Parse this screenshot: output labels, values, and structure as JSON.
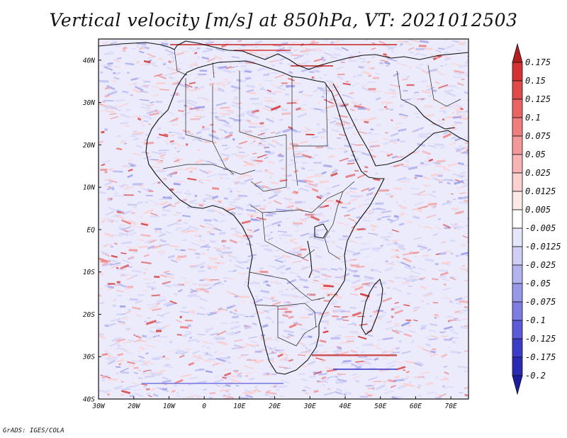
{
  "title": "Vertical velocity [m/s] at 850hPa, VT: 2021012503",
  "footer": "GrADS: IGES/COLA",
  "map": {
    "lon_range": [
      -30,
      75
    ],
    "lat_range": [
      -40,
      45
    ],
    "x_ticks": [
      {
        "lon": -30,
        "label": "30W"
      },
      {
        "lon": -20,
        "label": "20W"
      },
      {
        "lon": -10,
        "label": "10W"
      },
      {
        "lon": 0,
        "label": "0"
      },
      {
        "lon": 10,
        "label": "10E"
      },
      {
        "lon": 20,
        "label": "20E"
      },
      {
        "lon": 30,
        "label": "30E"
      },
      {
        "lon": 40,
        "label": "40E"
      },
      {
        "lon": 50,
        "label": "50E"
      },
      {
        "lon": 60,
        "label": "60E"
      },
      {
        "lon": 70,
        "label": "70E"
      }
    ],
    "y_ticks": [
      {
        "lat": 40,
        "label": "40N"
      },
      {
        "lat": 30,
        "label": "30N"
      },
      {
        "lat": 20,
        "label": "20N"
      },
      {
        "lat": 10,
        "label": "10N"
      },
      {
        "lat": 0,
        "label": "EQ"
      },
      {
        "lat": -10,
        "label": "10S"
      },
      {
        "lat": -20,
        "label": "20S"
      },
      {
        "lat": -30,
        "label": "30S"
      },
      {
        "lat": -40,
        "label": "40S"
      }
    ]
  },
  "colorbar": {
    "labels": [
      "0.175",
      "0.15",
      "0.125",
      "0.1",
      "0.075",
      "0.05",
      "0.025",
      "0.0125",
      "0.005",
      "-0.005",
      "-0.0125",
      "-0.025",
      "-0.05",
      "-0.075",
      "-0.1",
      "-0.125",
      "-0.175",
      "-0.2"
    ],
    "colors": [
      "#b41e1e",
      "#d43232",
      "#e14a4a",
      "#ea6464",
      "#f07e7e",
      "#f49999",
      "#f8b4b4",
      "#fbd0d0",
      "#fde8e8",
      "#ffffff",
      "#e6e6fb",
      "#cfcff6",
      "#b3b3f0",
      "#9898ea",
      "#7d7de4",
      "#5c5cd8",
      "#3c3cc8",
      "#2a2ab4",
      "#1c1ca0"
    ]
  },
  "field_colors": {
    "background": "#ebebfb",
    "up": [
      "#fbd0d0",
      "#f5aaaa",
      "#ee8282",
      "#d94040"
    ],
    "down": [
      "#d4d4f7",
      "#b8b8f1",
      "#a0a0ec"
    ],
    "coast": "#111111"
  }
}
